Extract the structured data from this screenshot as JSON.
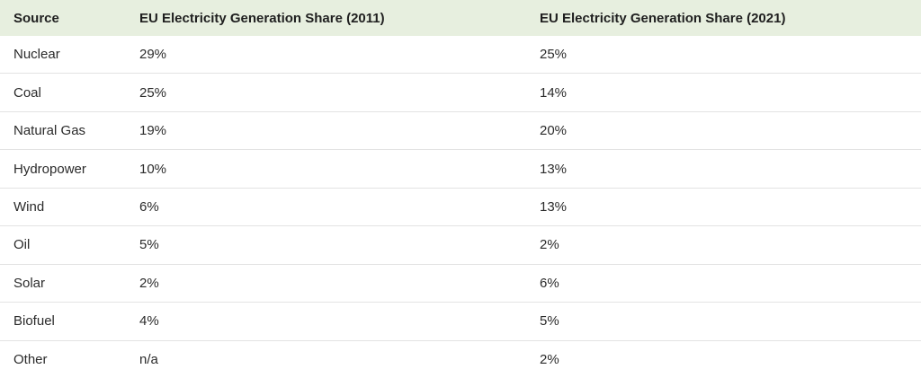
{
  "table": {
    "headers": [
      "Source",
      "EU Electricity Generation Share (2011)",
      "EU Electricity Generation Share (2021)"
    ],
    "rows": [
      [
        "Nuclear",
        "29%",
        "25%"
      ],
      [
        "Coal",
        "25%",
        "14%"
      ],
      [
        "Natural Gas",
        "19%",
        "20%"
      ],
      [
        "Hydropower",
        "10%",
        "13%"
      ],
      [
        "Wind",
        "6%",
        "13%"
      ],
      [
        "Oil",
        "5%",
        "2%"
      ],
      [
        "Solar",
        "2%",
        "6%"
      ],
      [
        "Biofuel",
        "4%",
        "5%"
      ],
      [
        "Other",
        "n/a",
        "2%"
      ]
    ]
  }
}
